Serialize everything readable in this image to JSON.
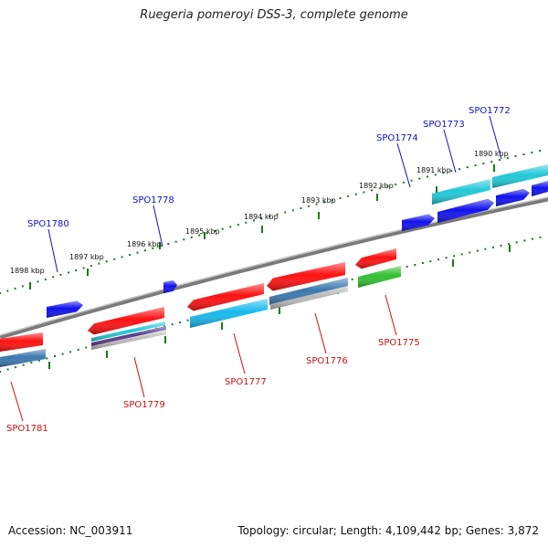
{
  "header": {
    "title": "Ruegeria pomeroyi DSS-3, complete genome"
  },
  "footer": {
    "accession": "Accession: NC_003911",
    "summary": "Topology: circular; Length: 4,109,442 bp; Genes: 3,872"
  },
  "colors": {
    "backbone": "#7a7a7a",
    "tick": "#1a7a1a",
    "label_top": "#1010c8",
    "label_bottom": "#cc1010",
    "red": "#ff1010",
    "blue": "#1010ee",
    "cyan": "#20c8d8",
    "skyblue": "#18b8ee",
    "steel": "#3a78b0",
    "gray": "#b8b8b8",
    "green": "#30c030",
    "purple": "#5a3a8a"
  },
  "kbp_ticks": [
    {
      "text": "1898 kbp"
    },
    {
      "text": "1897 kbp"
    },
    {
      "text": "1896 kbp"
    },
    {
      "text": "1895 kbp"
    },
    {
      "text": "1894 kbp"
    },
    {
      "text": "1893 kbp"
    },
    {
      "text": "1892 kbp"
    },
    {
      "text": "1891 kbp"
    },
    {
      "text": "1890 kbp"
    }
  ],
  "gene_labels_top": [
    {
      "text": "SPO1780"
    },
    {
      "text": "SPO1778"
    },
    {
      "text": "SPO1774"
    },
    {
      "text": "SPO1773"
    },
    {
      "text": "SPO1772"
    }
  ],
  "gene_labels_bottom": [
    {
      "text": "SPO1781"
    },
    {
      "text": "SPO1779"
    },
    {
      "text": "SPO1777"
    },
    {
      "text": "SPO1776"
    },
    {
      "text": "SPO1775"
    }
  ]
}
